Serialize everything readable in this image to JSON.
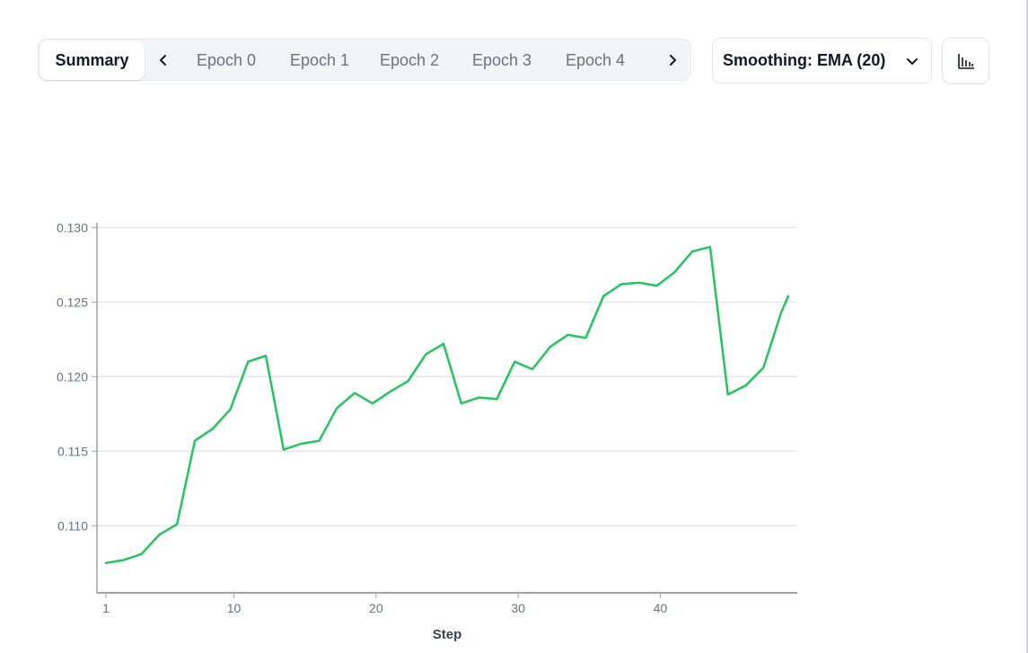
{
  "tabs": {
    "active": "Summary",
    "items": [
      "Epoch 0",
      "Epoch 1",
      "Epoch 2",
      "Epoch 3",
      "Epoch 4"
    ],
    "prev_icon": "chevron-left-icon",
    "next_icon": "chevron-right-icon"
  },
  "smoothing": {
    "label": "Smoothing: EMA (20)",
    "icon": "chevron-down-icon"
  },
  "chart_toggle": {
    "icon": "bar-chart-icon"
  },
  "colors": {
    "line": "#22c55e",
    "grid": "#e5e7eb",
    "axis": "#9ca3af"
  },
  "chart_data": {
    "type": "line",
    "title": "",
    "xlabel": "Step",
    "ylabel": "",
    "xlim": [
      1,
      49
    ],
    "ylim": [
      0.1055,
      0.1302
    ],
    "x_ticks": [
      1,
      10,
      20,
      30,
      40
    ],
    "y_ticks": [
      0.11,
      0.115,
      0.12,
      0.125,
      0.13
    ],
    "y_tick_labels": [
      "0.110",
      "0.115",
      "0.120",
      "0.125",
      "0.130"
    ],
    "grid": true,
    "series": [
      {
        "x": [
          1,
          2.25,
          3.5,
          4.75,
          6,
          7.25,
          8.5,
          9.75,
          11,
          12.25,
          13.5,
          14.75,
          16,
          17.25,
          18.5,
          19.75,
          21,
          22.25,
          23.5,
          24.75,
          26,
          27.25,
          28.5,
          29.75,
          31,
          32.25,
          33.5,
          34.75,
          36,
          37.25,
          38.5,
          39.75,
          41,
          42.25,
          43.5,
          44.75,
          46,
          47.25,
          48.5,
          49
        ],
        "y": [
          0.1075,
          0.1077,
          0.1081,
          0.1094,
          0.1101,
          0.1157,
          0.1165,
          0.1178,
          0.121,
          0.1214,
          0.1151,
          0.1155,
          0.1157,
          0.1179,
          0.1189,
          0.1182,
          0.119,
          0.1197,
          0.1215,
          0.1222,
          0.1182,
          0.1186,
          0.1185,
          0.121,
          0.1205,
          0.122,
          0.1228,
          0.1226,
          0.1254,
          0.1262,
          0.1263,
          0.1261,
          0.127,
          0.1284,
          0.1287,
          0.1188,
          0.1194,
          0.1206,
          0.1243,
          0.1254
        ]
      }
    ]
  }
}
